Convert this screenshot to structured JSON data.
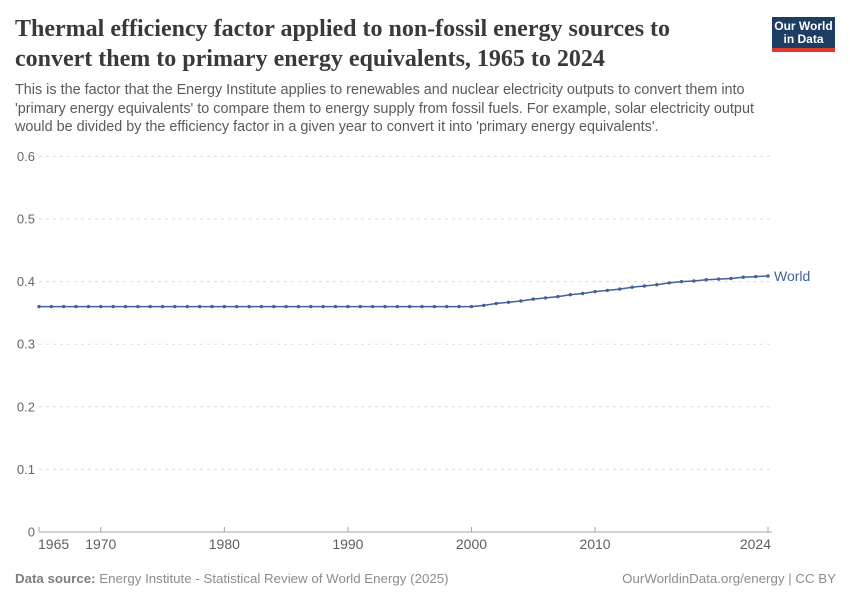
{
  "header": {
    "title": "Thermal efficiency factor applied to non-fossil energy sources to convert them to primary energy equivalents, 1965 to 2024",
    "subtitle": "This is the factor that the Energy Institute applies to renewables and nuclear electricity outputs to convert them into 'primary energy equivalents' to compare them to energy supply from fossil fuels. For example, solar electricity output would be divided by the efficiency factor in a given year to convert it into 'primary energy equivalents'.",
    "logo": {
      "line1": "Our World",
      "line2": "in Data"
    }
  },
  "footer": {
    "datasource_label": "Data source:",
    "datasource_text": " Energy Institute - Statistical Review of World Energy (2025)",
    "credit": "OurWorldinData.org/energy | CC BY"
  },
  "colors": {
    "line": "#43609c",
    "grid": "#dcdcdc",
    "axis": "#a6a6a6",
    "y_tick_label": "#666666",
    "x_tick_label": "#5e5e5e",
    "logo_bg": "#1d3d63",
    "logo_red": "#dc3a2c"
  },
  "chart_data": {
    "type": "line",
    "title": "Thermal efficiency factor applied to non-fossil energy sources to convert them to primary energy equivalents, 1965 to 2024",
    "xlabel": "",
    "ylabel": "",
    "xlim": [
      1965,
      2024
    ],
    "ylim": [
      0,
      0.6
    ],
    "grid": "horizontal-dashed",
    "legend_position": "end-of-line-label",
    "x_ticks": [
      1965,
      1970,
      1980,
      1990,
      2000,
      2010,
      2024
    ],
    "y_ticks": [
      0,
      0.1,
      0.2,
      0.3,
      0.4,
      0.5,
      0.6
    ],
    "y_tick_labels": [
      "0",
      "0.1",
      "0.2",
      "0.3",
      "0.4",
      "0.5",
      "0.6"
    ],
    "series": [
      {
        "name": "World",
        "points": [
          [
            1965,
            0.36
          ],
          [
            1966,
            0.36
          ],
          [
            1967,
            0.36
          ],
          [
            1968,
            0.36
          ],
          [
            1969,
            0.36
          ],
          [
            1970,
            0.36
          ],
          [
            1971,
            0.36
          ],
          [
            1972,
            0.36
          ],
          [
            1973,
            0.36
          ],
          [
            1974,
            0.36
          ],
          [
            1975,
            0.36
          ],
          [
            1976,
            0.36
          ],
          [
            1977,
            0.36
          ],
          [
            1978,
            0.36
          ],
          [
            1979,
            0.36
          ],
          [
            1980,
            0.36
          ],
          [
            1981,
            0.36
          ],
          [
            1982,
            0.36
          ],
          [
            1983,
            0.36
          ],
          [
            1984,
            0.36
          ],
          [
            1985,
            0.36
          ],
          [
            1986,
            0.36
          ],
          [
            1987,
            0.36
          ],
          [
            1988,
            0.36
          ],
          [
            1989,
            0.36
          ],
          [
            1990,
            0.36
          ],
          [
            1991,
            0.36
          ],
          [
            1992,
            0.36
          ],
          [
            1993,
            0.36
          ],
          [
            1994,
            0.36
          ],
          [
            1995,
            0.36
          ],
          [
            1996,
            0.36
          ],
          [
            1997,
            0.36
          ],
          [
            1998,
            0.36
          ],
          [
            1999,
            0.36
          ],
          [
            2000,
            0.36
          ],
          [
            2001,
            0.362
          ],
          [
            2002,
            0.365
          ],
          [
            2003,
            0.367
          ],
          [
            2004,
            0.369
          ],
          [
            2005,
            0.372
          ],
          [
            2006,
            0.374
          ],
          [
            2007,
            0.376
          ],
          [
            2008,
            0.379
          ],
          [
            2009,
            0.381
          ],
          [
            2010,
            0.384
          ],
          [
            2011,
            0.386
          ],
          [
            2012,
            0.388
          ],
          [
            2013,
            0.391
          ],
          [
            2014,
            0.393
          ],
          [
            2015,
            0.395
          ],
          [
            2016,
            0.398
          ],
          [
            2017,
            0.4
          ],
          [
            2018,
            0.401
          ],
          [
            2019,
            0.403
          ],
          [
            2020,
            0.404
          ],
          [
            2021,
            0.405
          ],
          [
            2022,
            0.407
          ],
          [
            2023,
            0.408
          ],
          [
            2024,
            0.409
          ]
        ]
      }
    ]
  }
}
